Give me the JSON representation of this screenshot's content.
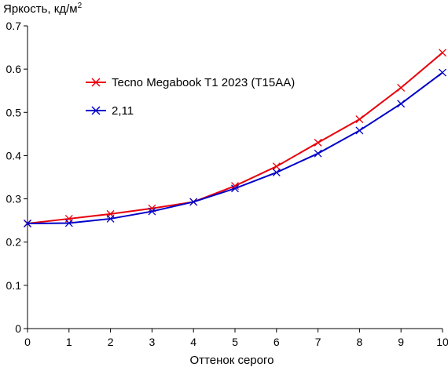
{
  "chart_data": {
    "type": "line",
    "title": "",
    "xlabel": "Оттенок серого",
    "ylabel": "Яркость, кд/м",
    "ylabel_superscript": "2",
    "xlim": [
      0,
      10
    ],
    "ylim": [
      0,
      0.7
    ],
    "x_ticks": [
      "0",
      "1",
      "2",
      "3",
      "4",
      "5",
      "6",
      "7",
      "8",
      "9",
      "10"
    ],
    "y_ticks": [
      "0",
      "0.1",
      "0.2",
      "0.3",
      "0.4",
      "0.5",
      "0.6",
      "0.7"
    ],
    "grid": false,
    "legend_position": "upper-left",
    "x": [
      0,
      1,
      2,
      3,
      4,
      5,
      6,
      7,
      8,
      9,
      10
    ],
    "series": [
      {
        "name": "Tecno Megabook T1 2023 (T15AA)",
        "color": "#e8000b",
        "marker": "x",
        "values": [
          0.243,
          0.254,
          0.265,
          0.278,
          0.293,
          0.33,
          0.375,
          0.43,
          0.484,
          0.557,
          0.638
        ]
      },
      {
        "name": "2,11",
        "color": "#0000c8",
        "marker": "x",
        "values": [
          0.243,
          0.244,
          0.254,
          0.271,
          0.293,
          0.324,
          0.361,
          0.405,
          0.458,
          0.52,
          0.592
        ]
      }
    ]
  }
}
